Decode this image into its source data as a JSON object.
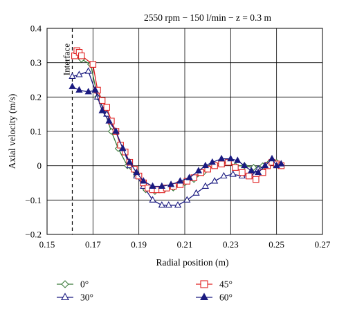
{
  "chart_data": {
    "type": "line",
    "title": "2550 rpm − 150 l/min − z = 0.3 m",
    "xlabel": "Radial position (m)",
    "ylabel": "Axial velocity (m/s)",
    "xlim": [
      0.15,
      0.27
    ],
    "ylim": [
      -0.2,
      0.4
    ],
    "x_ticks": [
      0.15,
      0.17,
      0.19,
      0.21,
      0.23,
      0.25,
      0.27
    ],
    "y_ticks": [
      -0.2,
      -0.1,
      0,
      0.1,
      0.2,
      0.3,
      0.4
    ],
    "x_tick_labels": [
      "0.15",
      "0.17",
      "0.19",
      "0.21",
      "0.23",
      "0.25",
      "0.27"
    ],
    "y_tick_labels": [
      "−0.2",
      "−0.1",
      "0",
      "0.1",
      "0.2",
      "0.3",
      "0.4"
    ],
    "grid": true,
    "legend_position": "bottom",
    "annotation": {
      "text": "Interface",
      "x": 0.161
    },
    "series": [
      {
        "name": "0°",
        "color": "#3a7a3a",
        "marker": "diamond-open",
        "points": [
          [
            0.163,
            0.32
          ],
          [
            0.165,
            0.31
          ],
          [
            0.169,
            0.295
          ],
          [
            0.172,
            0.2
          ],
          [
            0.175,
            0.16
          ],
          [
            0.178,
            0.1
          ],
          [
            0.181,
            0.05
          ],
          [
            0.185,
            0.0
          ],
          [
            0.189,
            -0.03
          ],
          [
            0.193,
            -0.07
          ],
          [
            0.197,
            -0.075
          ],
          [
            0.201,
            -0.07
          ],
          [
            0.205,
            -0.065
          ],
          [
            0.21,
            -0.05
          ],
          [
            0.214,
            -0.04
          ],
          [
            0.218,
            -0.02
          ],
          [
            0.222,
            0.0
          ],
          [
            0.226,
            0.01
          ],
          [
            0.229,
            0.01
          ],
          [
            0.232,
            0.0
          ],
          [
            0.236,
            0.0
          ],
          [
            0.24,
            -0.005
          ],
          [
            0.244,
            0.0
          ],
          [
            0.247,
            0.01
          ],
          [
            0.25,
            0.01
          ],
          [
            0.252,
            0.0
          ]
        ]
      },
      {
        "name": "30°",
        "color": "#1a1a80",
        "marker": "triangle-open",
        "points": [
          [
            0.161,
            0.26
          ],
          [
            0.164,
            0.265
          ],
          [
            0.168,
            0.275
          ],
          [
            0.172,
            0.2
          ],
          [
            0.176,
            0.15
          ],
          [
            0.18,
            0.1
          ],
          [
            0.183,
            0.05
          ],
          [
            0.186,
            0.0
          ],
          [
            0.189,
            -0.03
          ],
          [
            0.192,
            -0.06
          ],
          [
            0.196,
            -0.1
          ],
          [
            0.2,
            -0.115
          ],
          [
            0.203,
            -0.115
          ],
          [
            0.207,
            -0.115
          ],
          [
            0.211,
            -0.1
          ],
          [
            0.215,
            -0.08
          ],
          [
            0.219,
            -0.06
          ],
          [
            0.223,
            -0.045
          ],
          [
            0.227,
            -0.03
          ],
          [
            0.231,
            -0.025
          ],
          [
            0.235,
            -0.03
          ],
          [
            0.239,
            -0.03
          ],
          [
            0.242,
            -0.01
          ],
          [
            0.245,
            0.0
          ],
          [
            0.248,
            0.01
          ],
          [
            0.25,
            0.0
          ],
          [
            0.252,
            0.0
          ]
        ]
      },
      {
        "name": "45°",
        "color": "#e02020",
        "marker": "square-open",
        "points": [
          [
            0.162,
            0.32
          ],
          [
            0.163,
            0.335
          ],
          [
            0.164,
            0.33
          ],
          [
            0.165,
            0.32
          ],
          [
            0.17,
            0.295
          ],
          [
            0.172,
            0.22
          ],
          [
            0.174,
            0.19
          ],
          [
            0.176,
            0.17
          ],
          [
            0.178,
            0.13
          ],
          [
            0.18,
            0.1
          ],
          [
            0.182,
            0.06
          ],
          [
            0.184,
            0.04
          ],
          [
            0.186,
            0.01
          ],
          [
            0.188,
            -0.01
          ],
          [
            0.19,
            -0.03
          ],
          [
            0.192,
            -0.05
          ],
          [
            0.194,
            -0.065
          ],
          [
            0.196,
            -0.07
          ],
          [
            0.198,
            -0.07
          ],
          [
            0.2,
            -0.07
          ],
          [
            0.202,
            -0.065
          ],
          [
            0.205,
            -0.06
          ],
          [
            0.208,
            -0.055
          ],
          [
            0.211,
            -0.045
          ],
          [
            0.214,
            -0.035
          ],
          [
            0.217,
            -0.02
          ],
          [
            0.22,
            -0.01
          ],
          [
            0.223,
            0.0
          ],
          [
            0.226,
            0.005
          ],
          [
            0.229,
            0.01
          ],
          [
            0.232,
            -0.005
          ],
          [
            0.235,
            -0.02
          ],
          [
            0.238,
            -0.03
          ],
          [
            0.241,
            -0.04
          ],
          [
            0.244,
            -0.02
          ],
          [
            0.246,
            0.0
          ],
          [
            0.248,
            0.01
          ],
          [
            0.25,
            0.005
          ],
          [
            0.252,
            0.0
          ]
        ]
      },
      {
        "name": "60°",
        "color": "#1a1a80",
        "marker": "triangle-filled",
        "points": [
          [
            0.161,
            0.23
          ],
          [
            0.164,
            0.22
          ],
          [
            0.168,
            0.215
          ],
          [
            0.171,
            0.22
          ],
          [
            0.174,
            0.16
          ],
          [
            0.177,
            0.13
          ],
          [
            0.18,
            0.1
          ],
          [
            0.183,
            0.05
          ],
          [
            0.186,
            0.01
          ],
          [
            0.189,
            -0.02
          ],
          [
            0.192,
            -0.045
          ],
          [
            0.196,
            -0.06
          ],
          [
            0.2,
            -0.06
          ],
          [
            0.204,
            -0.055
          ],
          [
            0.208,
            -0.045
          ],
          [
            0.212,
            -0.035
          ],
          [
            0.216,
            -0.015
          ],
          [
            0.219,
            0.0
          ],
          [
            0.222,
            0.01
          ],
          [
            0.226,
            0.02
          ],
          [
            0.23,
            0.02
          ],
          [
            0.233,
            0.015
          ],
          [
            0.236,
            0.0
          ],
          [
            0.239,
            -0.015
          ],
          [
            0.242,
            -0.02
          ],
          [
            0.245,
            0.0
          ],
          [
            0.248,
            0.02
          ],
          [
            0.25,
            0.0
          ],
          [
            0.252,
            0.005
          ]
        ]
      }
    ]
  }
}
